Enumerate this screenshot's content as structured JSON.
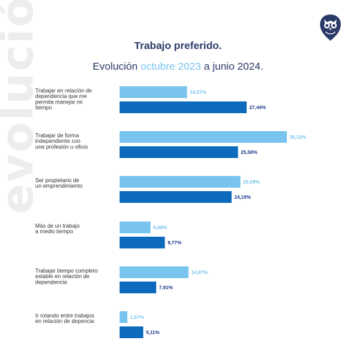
{
  "watermark": "evolución",
  "logo_icon": "owl-logo-icon",
  "title": "Trabajo preferido.",
  "subtitle": {
    "prefix": "Evolución ",
    "period_a": "octubre 2023",
    "joiner": " a ",
    "period_b": "junio 2024."
  },
  "colors": {
    "series_a": "#79c4ee",
    "series_b": "#0d6bbd",
    "title": "#2b3a67"
  },
  "chart_data": {
    "type": "bar",
    "orientation": "horizontal",
    "title": "Trabajo preferido.",
    "categories": [
      [
        "Trabajar en relación de",
        "dependencia que me",
        "permita manejar mi",
        "tiempo"
      ],
      [
        "Trabajar de forma",
        "independiente con",
        "una profesión u oficio"
      ],
      [
        "Ser propietario de",
        "un emprendimiento"
      ],
      [
        "Más de un trabajo",
        "a medio tiempo"
      ],
      [
        "Trabajar tiempo completo",
        "estable en relación de",
        "dependencia"
      ],
      [
        "Ir rotando entre trabajos",
        "en relación de depencia"
      ]
    ],
    "series": [
      {
        "values": [
          14.57,
          36.12,
          26.09,
          6.68,
          14.87,
          1.67
        ],
        "labels": [
          "14,57%",
          "36,12%",
          "26,09%",
          "6,68%",
          "14,87%",
          "1,67%"
        ]
      },
      {
        "values": [
          27.44,
          25.58,
          24.19,
          9.77,
          7.91,
          5.11
        ],
        "labels": [
          "27,44%",
          "25,58%",
          "24,19%",
          "9,77%",
          "7,91%",
          "5,11%"
        ]
      }
    ],
    "xlim": [
      0,
      36.12
    ],
    "grid": false,
    "legend": "none"
  }
}
